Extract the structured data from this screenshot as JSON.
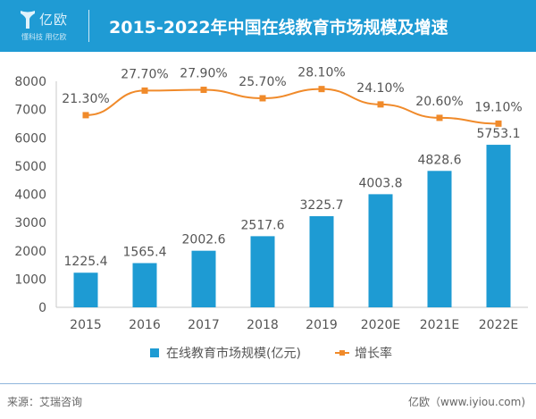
{
  "header": {
    "logo_text": "亿欧",
    "logo_slogan": "懂科技 用亿欧",
    "title": "2015-2022年中国在线教育市场规模及增速"
  },
  "colors": {
    "header_bg": "#1f9bd4",
    "bar": "#1e9bd3",
    "line": "#f08a2a"
  },
  "chart_data": {
    "type": "bar",
    "title": "2015-2022年中国在线教育市场规模及增速",
    "categories": [
      "2015",
      "2016",
      "2017",
      "2018",
      "2019",
      "2020E",
      "2021E",
      "2022E"
    ],
    "series": [
      {
        "name": "在线教育市场规模(亿元)",
        "type": "bar",
        "axis": "left",
        "values": [
          1225.4,
          1565.4,
          2002.6,
          2517.6,
          3225.7,
          4003.8,
          4828.6,
          5753.1
        ],
        "labels": [
          "1225.4",
          "1565.4",
          "2002.6",
          "2517.6",
          "3225.7",
          "4003.8",
          "4828.6",
          "5753.1"
        ]
      },
      {
        "name": "增长率",
        "type": "line",
        "axis": "right-hidden",
        "values": [
          21.3,
          27.7,
          27.9,
          25.7,
          28.1,
          24.1,
          20.6,
          19.1
        ],
        "labels": [
          "21.30%",
          "27.70%",
          "27.90%",
          "25.70%",
          "28.10%",
          "24.10%",
          "20.60%",
          "19.10%"
        ]
      }
    ],
    "yticks": [
      "0",
      "1000",
      "2000",
      "3000",
      "4000",
      "5000",
      "6000",
      "7000",
      "8000"
    ],
    "ylim": [
      0,
      8000
    ],
    "xlabel": "",
    "ylabel": "",
    "grid": false,
    "legend": "bottom"
  },
  "footer": {
    "source": "来源：艾瑞咨询",
    "credit": "亿欧（www.iyiou.com)"
  }
}
